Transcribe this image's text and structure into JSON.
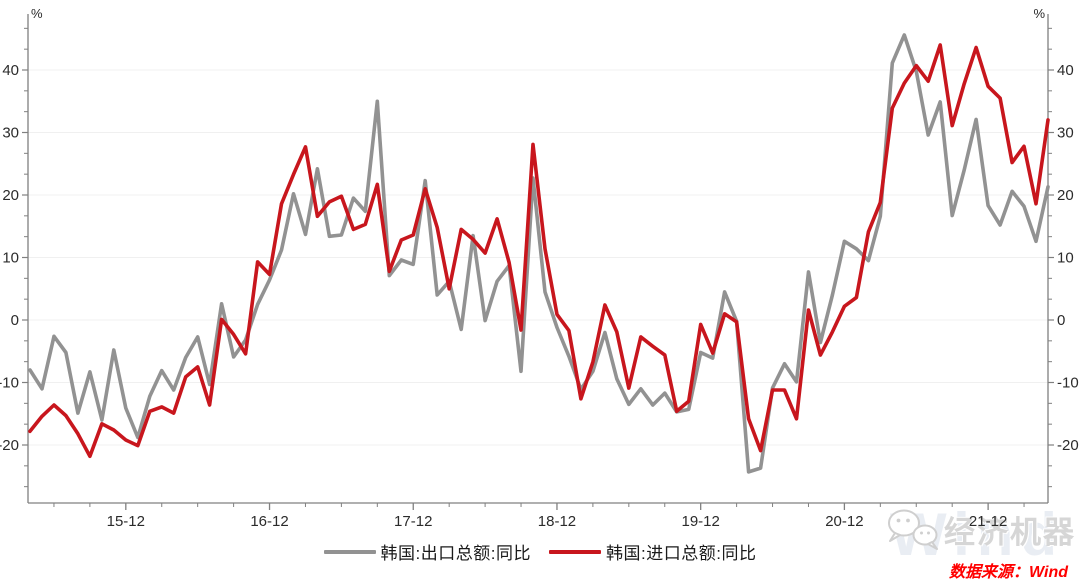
{
  "page": {
    "background": "#ffffff"
  },
  "chart_data": {
    "type": "line",
    "title": "",
    "unit_label": "%",
    "grid": "horizontal-only",
    "legend_position": "bottom-center",
    "x_monthly_start": "2015-04",
    "x_monthly_end": "2022-05",
    "x_tick_labels": [
      "15-12",
      "16-12",
      "17-12",
      "18-12",
      "19-12",
      "20-12",
      "21-12"
    ],
    "x_tick_month_indices": [
      8,
      20,
      32,
      44,
      56,
      68,
      80
    ],
    "y_ticks": [
      40,
      30,
      20,
      10,
      0,
      -10,
      -20
    ],
    "y_axis_mirrored": true,
    "ylim_drawn": [
      -29.3,
      48.8
    ],
    "axis_color": "#808080",
    "grid_color": "#f0f0f0",
    "tick_text_color": "#2b2b2b",
    "series": [
      {
        "key": "exports",
        "name": "韩国:出口总额:同比",
        "color": "#929292",
        "values": [
          -8.0,
          -11.0,
          -2.6,
          -5.2,
          -14.9,
          -8.3,
          -16.0,
          -4.8,
          -14.1,
          -18.8,
          -12.2,
          -8.1,
          -11.2,
          -6.0,
          -2.7,
          -10.3,
          2.6,
          -5.9,
          -3.2,
          2.5,
          6.4,
          11.2,
          20.2,
          13.7,
          24.2,
          13.4,
          13.6,
          19.5,
          17.4,
          35.0,
          7.1,
          9.6,
          8.9,
          22.3,
          4.0,
          6.2,
          -1.5,
          13.5,
          -0.1,
          6.2,
          8.7,
          -8.2,
          22.7,
          4.5,
          -1.2,
          -5.8,
          -11.1,
          -8.2,
          -2.0,
          -9.4,
          -13.5,
          -11.0,
          -13.6,
          -11.7,
          -14.7,
          -14.3,
          -5.2,
          -6.1,
          4.5,
          -0.2,
          -24.3,
          -23.7,
          -10.9,
          -7.0,
          -9.9,
          7.7,
          -3.6,
          4.0,
          12.6,
          11.4,
          9.5,
          16.6,
          41.1,
          45.6,
          39.8,
          29.6,
          34.9,
          16.7,
          24.0,
          32.1,
          18.3,
          15.2,
          20.6,
          18.2,
          12.6,
          21.3
        ]
      },
      {
        "key": "imports",
        "name": "韩国:进口总额:同比",
        "color": "#c8161d",
        "values": [
          -17.8,
          -15.4,
          -13.6,
          -15.3,
          -18.2,
          -21.8,
          -16.6,
          -17.6,
          -19.2,
          -20.1,
          -14.6,
          -13.9,
          -14.9,
          -9.1,
          -7.5,
          -13.6,
          0.1,
          -2.3,
          -5.4,
          9.3,
          7.3,
          18.6,
          23.3,
          27.7,
          16.6,
          18.9,
          19.8,
          14.5,
          15.3,
          21.7,
          7.8,
          12.8,
          13.6,
          21.0,
          14.8,
          5.0,
          14.5,
          12.9,
          10.7,
          16.2,
          9.2,
          -1.6,
          28.1,
          11.4,
          0.9,
          -1.7,
          -12.6,
          -6.7,
          2.4,
          -1.9,
          -10.9,
          -2.7,
          -4.2,
          -5.6,
          -14.6,
          -13.0,
          -0.7,
          -5.3,
          1.0,
          -0.3,
          -15.8,
          -20.9,
          -11.2,
          -11.2,
          -15.8,
          1.6,
          -5.6,
          -1.9,
          2.2,
          3.6,
          14.1,
          18.8,
          33.9,
          37.9,
          40.7,
          38.2,
          44.0,
          31.1,
          37.8,
          43.6,
          37.4,
          35.5,
          25.2,
          27.8,
          18.6,
          32.0
        ]
      }
    ]
  },
  "footer": {
    "source_label": "数据来源：Wind"
  },
  "watermark": {
    "brand": "Wind",
    "account": "经济机器",
    "icon": "wechat-icon"
  }
}
